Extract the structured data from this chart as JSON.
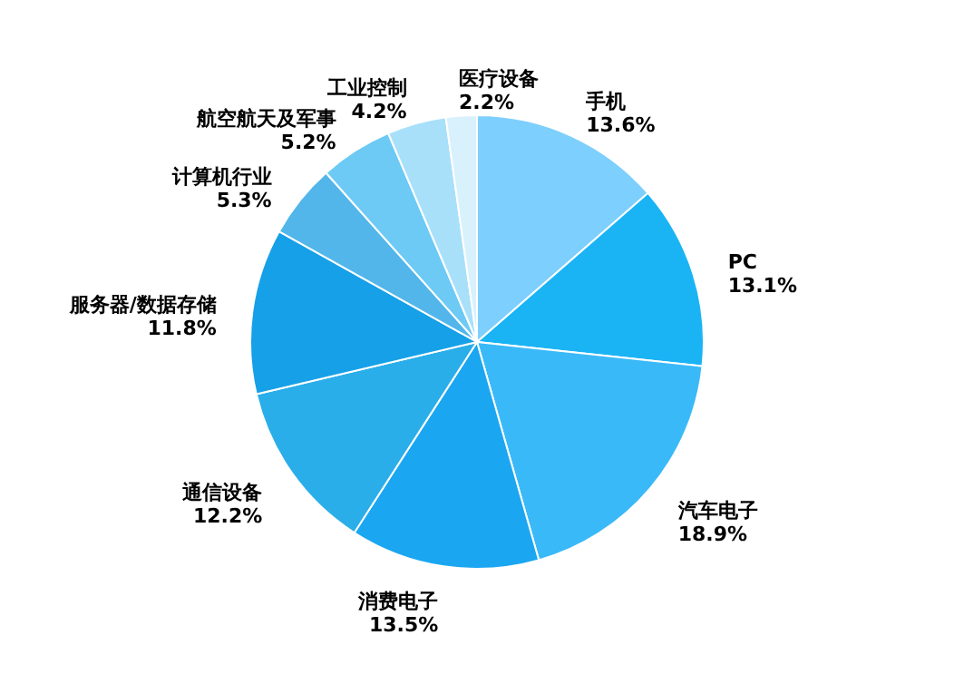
{
  "chart_data": {
    "type": "pie",
    "categories": [
      "手机",
      "PC",
      "汽车电子",
      "消费电子",
      "通信设备",
      "服务器/数据存储",
      "计算机行业",
      "航空航天及军事",
      "工业控制",
      "医疗设备"
    ],
    "values": [
      13.6,
      13.1,
      18.9,
      13.5,
      12.2,
      11.8,
      5.3,
      5.2,
      4.2,
      2.2
    ],
    "value_labels": [
      "13.6%",
      "13.1%",
      "18.9%",
      "13.5%",
      "12.2%",
      "11.8%",
      "5.3%",
      "5.2%",
      "4.2%",
      "2.2%"
    ],
    "colors": [
      "#7dcffd",
      "#1ab4f5",
      "#3ab9f8",
      "#1ba6f1",
      "#2aaee9",
      "#16a0e8",
      "#52b6ea",
      "#6ccaf5",
      "#a8e0fa",
      "#d8f1fc"
    ],
    "legend": false
  }
}
